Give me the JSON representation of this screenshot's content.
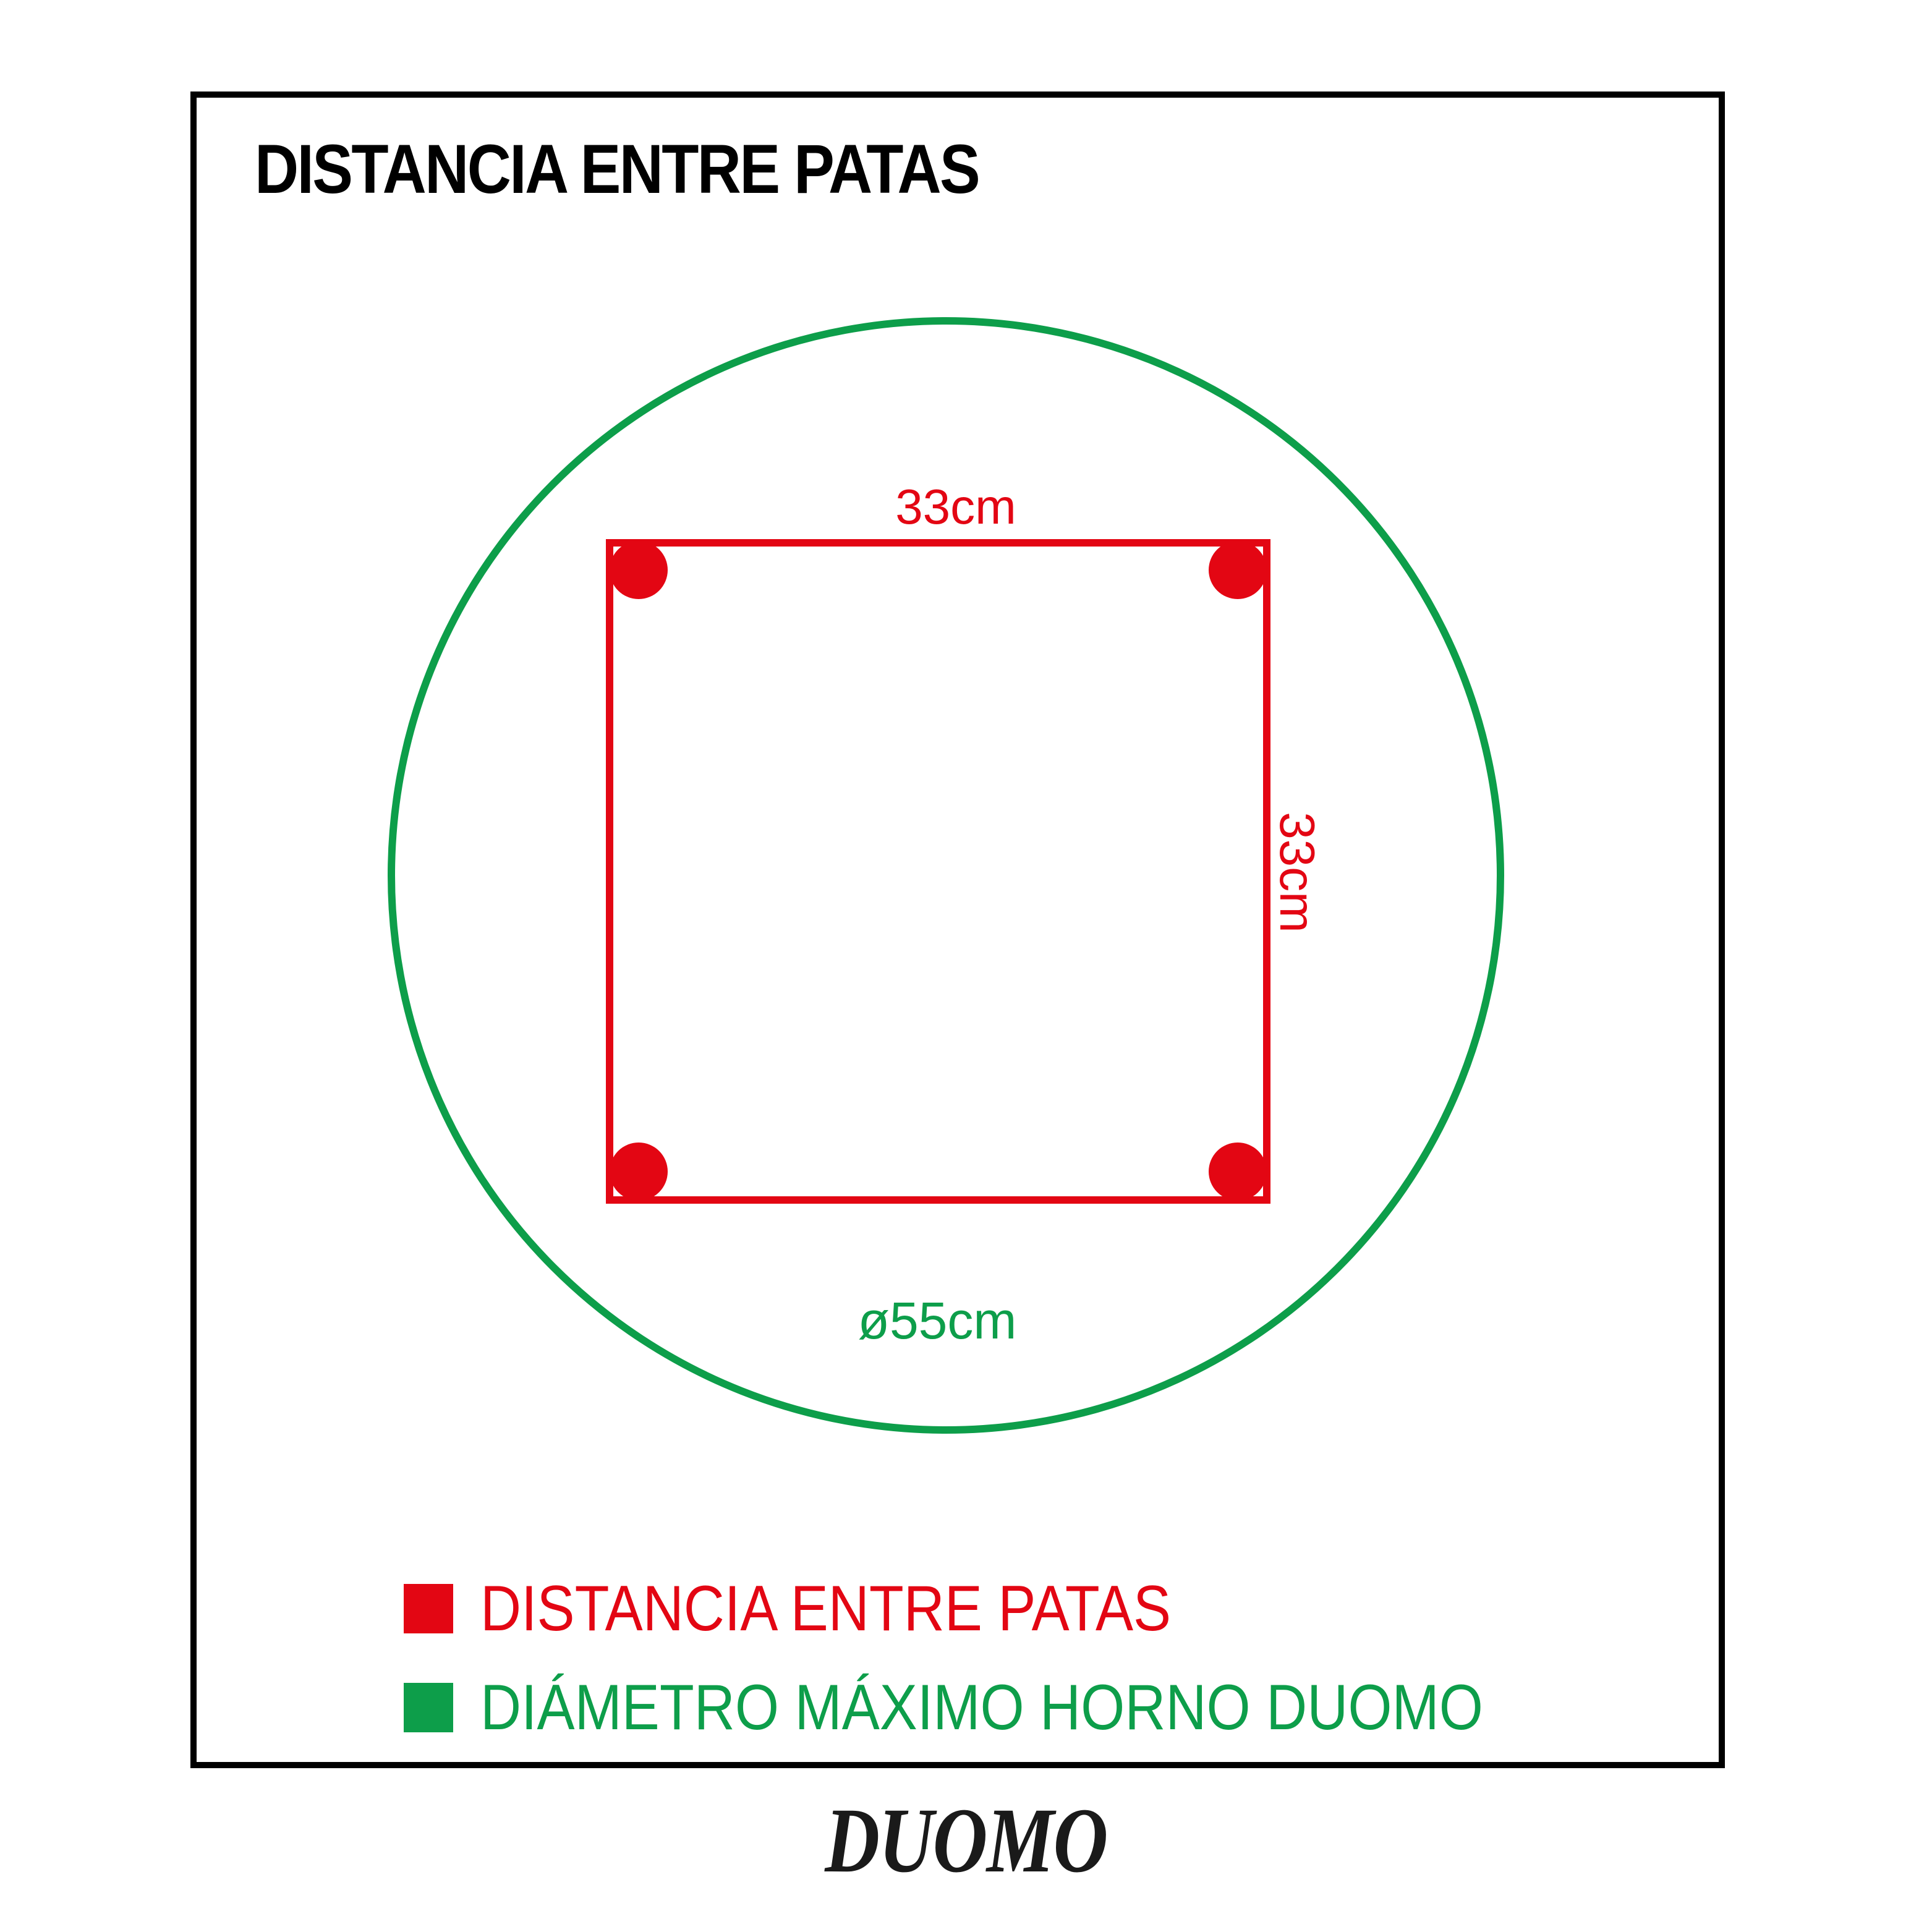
{
  "title": "DISTANCIA ENTRE PATAS",
  "diagram": {
    "square_top_label": "33cm",
    "square_right_label": "33cm",
    "circle_diameter_label": "ø55cm",
    "leg_count": 4,
    "measurements": {
      "distance_between_legs_cm": 33,
      "max_oven_diameter_cm": 55
    }
  },
  "legend": {
    "items": [
      {
        "label": "DISTANCIA ENTRE PATAS",
        "color": "#e30613"
      },
      {
        "label": "DIÁMETRO MÁXIMO HORNO DUOMO",
        "color": "#0d9e4a"
      }
    ]
  },
  "brand": {
    "logo_text": "DUOMO"
  },
  "colors": {
    "red": "#e30613",
    "green": "#0d9e4a",
    "frame": "#000000",
    "title": "#000000",
    "logo": "#1a1a1a",
    "background": "#ffffff"
  }
}
